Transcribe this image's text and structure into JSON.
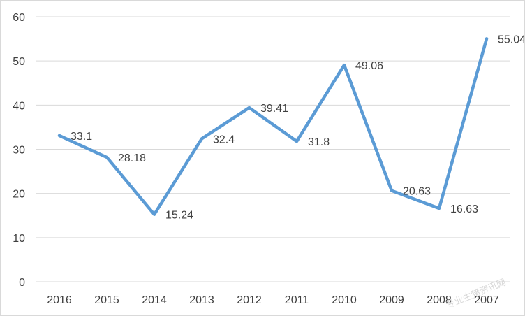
{
  "chart_data": {
    "type": "line",
    "title": "",
    "xlabel": "",
    "ylabel": "",
    "categories": [
      "2016",
      "2015",
      "2014",
      "2013",
      "2012",
      "2011",
      "2010",
      "2009",
      "2008",
      "2007"
    ],
    "series": [
      {
        "values": [
          33.1,
          28.18,
          15.24,
          32.4,
          39.41,
          31.8,
          49.06,
          20.63,
          16.63,
          55.04
        ],
        "labels": [
          "33.1",
          "28.18",
          "15.24",
          "32.4",
          "39.41",
          "31.8",
          "49.06",
          "20.63",
          "16.63",
          "55.04"
        ]
      }
    ],
    "ylim": [
      0,
      60
    ],
    "yticks": [
      "0",
      "10",
      "20",
      "30",
      "40",
      "50",
      "60"
    ],
    "grid": true,
    "legend": "none",
    "line_color": "#5b9bd5",
    "grid_color": "#d9d9d9"
  },
  "watermark": "专业生猪资讯网"
}
